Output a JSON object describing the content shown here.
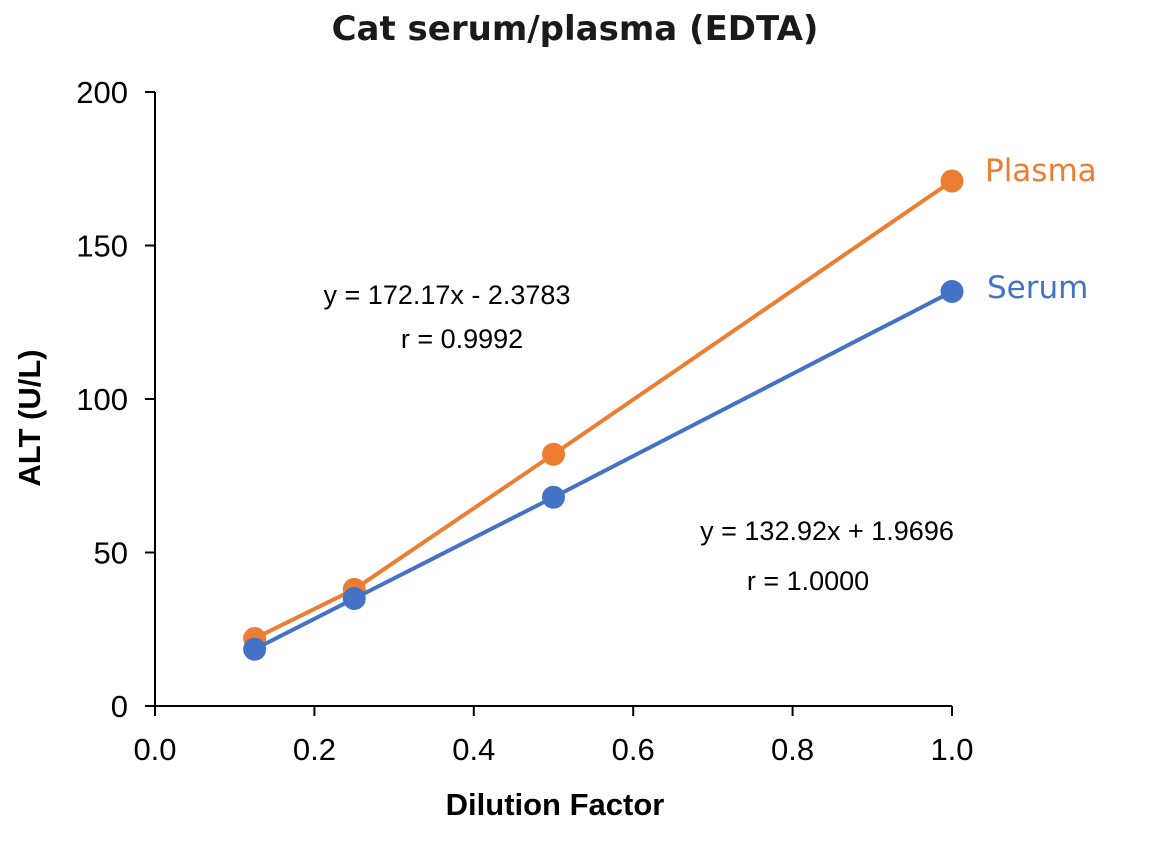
{
  "chart_data": {
    "type": "scatter",
    "title": "Cat serum/plasma (EDTA)",
    "xlabel": "Dilution Factor",
    "ylabel": "ALT (U/L)",
    "xlim": [
      0,
      1
    ],
    "ylim": [
      0,
      200
    ],
    "xticks": [
      "0.0",
      "0.2",
      "0.4",
      "0.6",
      "0.8",
      "1.0"
    ],
    "yticks": [
      "0",
      "50",
      "100",
      "150",
      "200"
    ],
    "grid": false,
    "series": [
      {
        "name": "Plasma",
        "color": "#ED7D31",
        "x": [
          0.125,
          0.25,
          0.5,
          1.0
        ],
        "y": [
          22,
          38,
          82,
          171
        ],
        "trendline": {
          "slope": 172.17,
          "intercept": -2.3783
        },
        "equation": "y = 172.17x - 2.3783",
        "r": "r = 0.9992"
      },
      {
        "name": "Serum",
        "color": "#4472C4",
        "x": [
          0.125,
          0.25,
          0.5,
          1.0
        ],
        "y": [
          18.5,
          35,
          68,
          135
        ],
        "trendline": {
          "slope": 132.92,
          "intercept": 1.9696
        },
        "equation": "y = 132.92x + 1.9696",
        "r": "r = 1.0000"
      }
    ]
  }
}
